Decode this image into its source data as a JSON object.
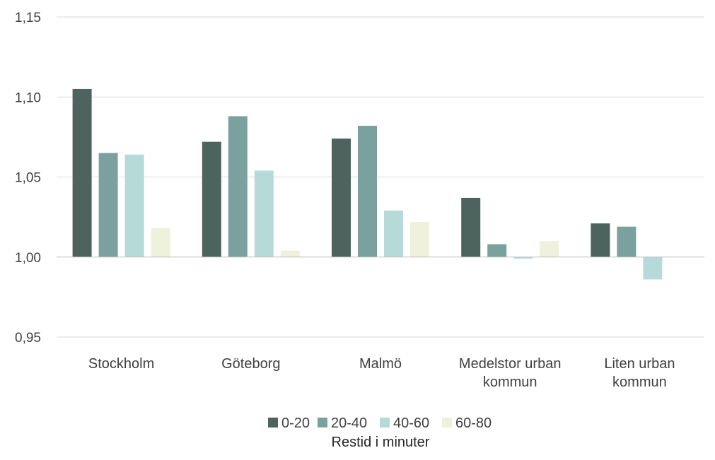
{
  "chart_data": {
    "type": "bar",
    "categories": [
      [
        "Stockholm"
      ],
      [
        "Göteborg"
      ],
      [
        "Malmö"
      ],
      [
        "Medelstor urban",
        "kommun"
      ],
      [
        "Liten urban",
        "kommun"
      ]
    ],
    "series": [
      {
        "name": "0-20",
        "color": "#4d635d",
        "values": [
          1.105,
          1.072,
          1.074,
          1.037,
          1.021
        ]
      },
      {
        "name": "20-40",
        "color": "#7aa19e",
        "values": [
          1.065,
          1.088,
          1.082,
          1.008,
          1.019
        ]
      },
      {
        "name": "40-60",
        "color": "#b5dad8",
        "values": [
          1.064,
          1.054,
          1.029,
          0.999,
          0.986
        ]
      },
      {
        "name": "60-80",
        "color": "#eff1dc",
        "values": [
          1.018,
          1.004,
          1.022,
          1.01,
          1.0
        ]
      }
    ],
    "y_ticks": [
      "1,15",
      "1,10",
      "1,05",
      "1,00",
      "0,95"
    ],
    "ylim": [
      0.95,
      1.15
    ],
    "baseline": 1.0,
    "xlabel": "Restid i minuter",
    "grid": true,
    "legend_position": "bottom"
  }
}
